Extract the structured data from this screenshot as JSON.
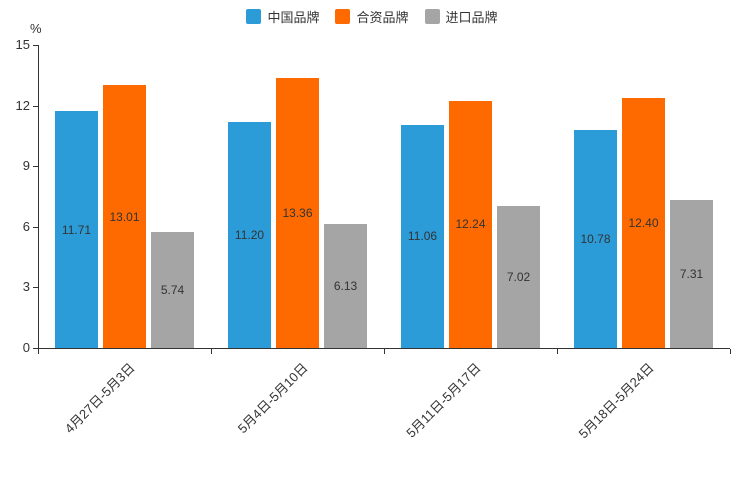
{
  "chart_data": {
    "type": "bar",
    "title": "",
    "categories": [
      "4月27日-5月3日",
      "5月4日-5月10日",
      "5月11日-5月17日",
      "5月18日-5月24日"
    ],
    "series": [
      {
        "name": "中国品牌",
        "color": "#2B9CD8",
        "values": [
          11.71,
          11.2,
          11.06,
          10.78
        ]
      },
      {
        "name": "合资品牌",
        "color": "#FF6A00",
        "values": [
          13.01,
          13.36,
          12.24,
          12.4
        ]
      },
      {
        "name": "进口品牌",
        "color": "#A5A5A5",
        "values": [
          5.74,
          6.13,
          7.02,
          7.31
        ]
      }
    ],
    "xlabel": "",
    "ylabel": "%",
    "ylim": [
      0,
      15
    ],
    "ytick_step": 3,
    "grid": false,
    "legend_position": "top",
    "bar_label_position": "inside-center",
    "bar_label_decimals": 2,
    "axis_color": "#333333",
    "background_color": "#ffffff"
  }
}
